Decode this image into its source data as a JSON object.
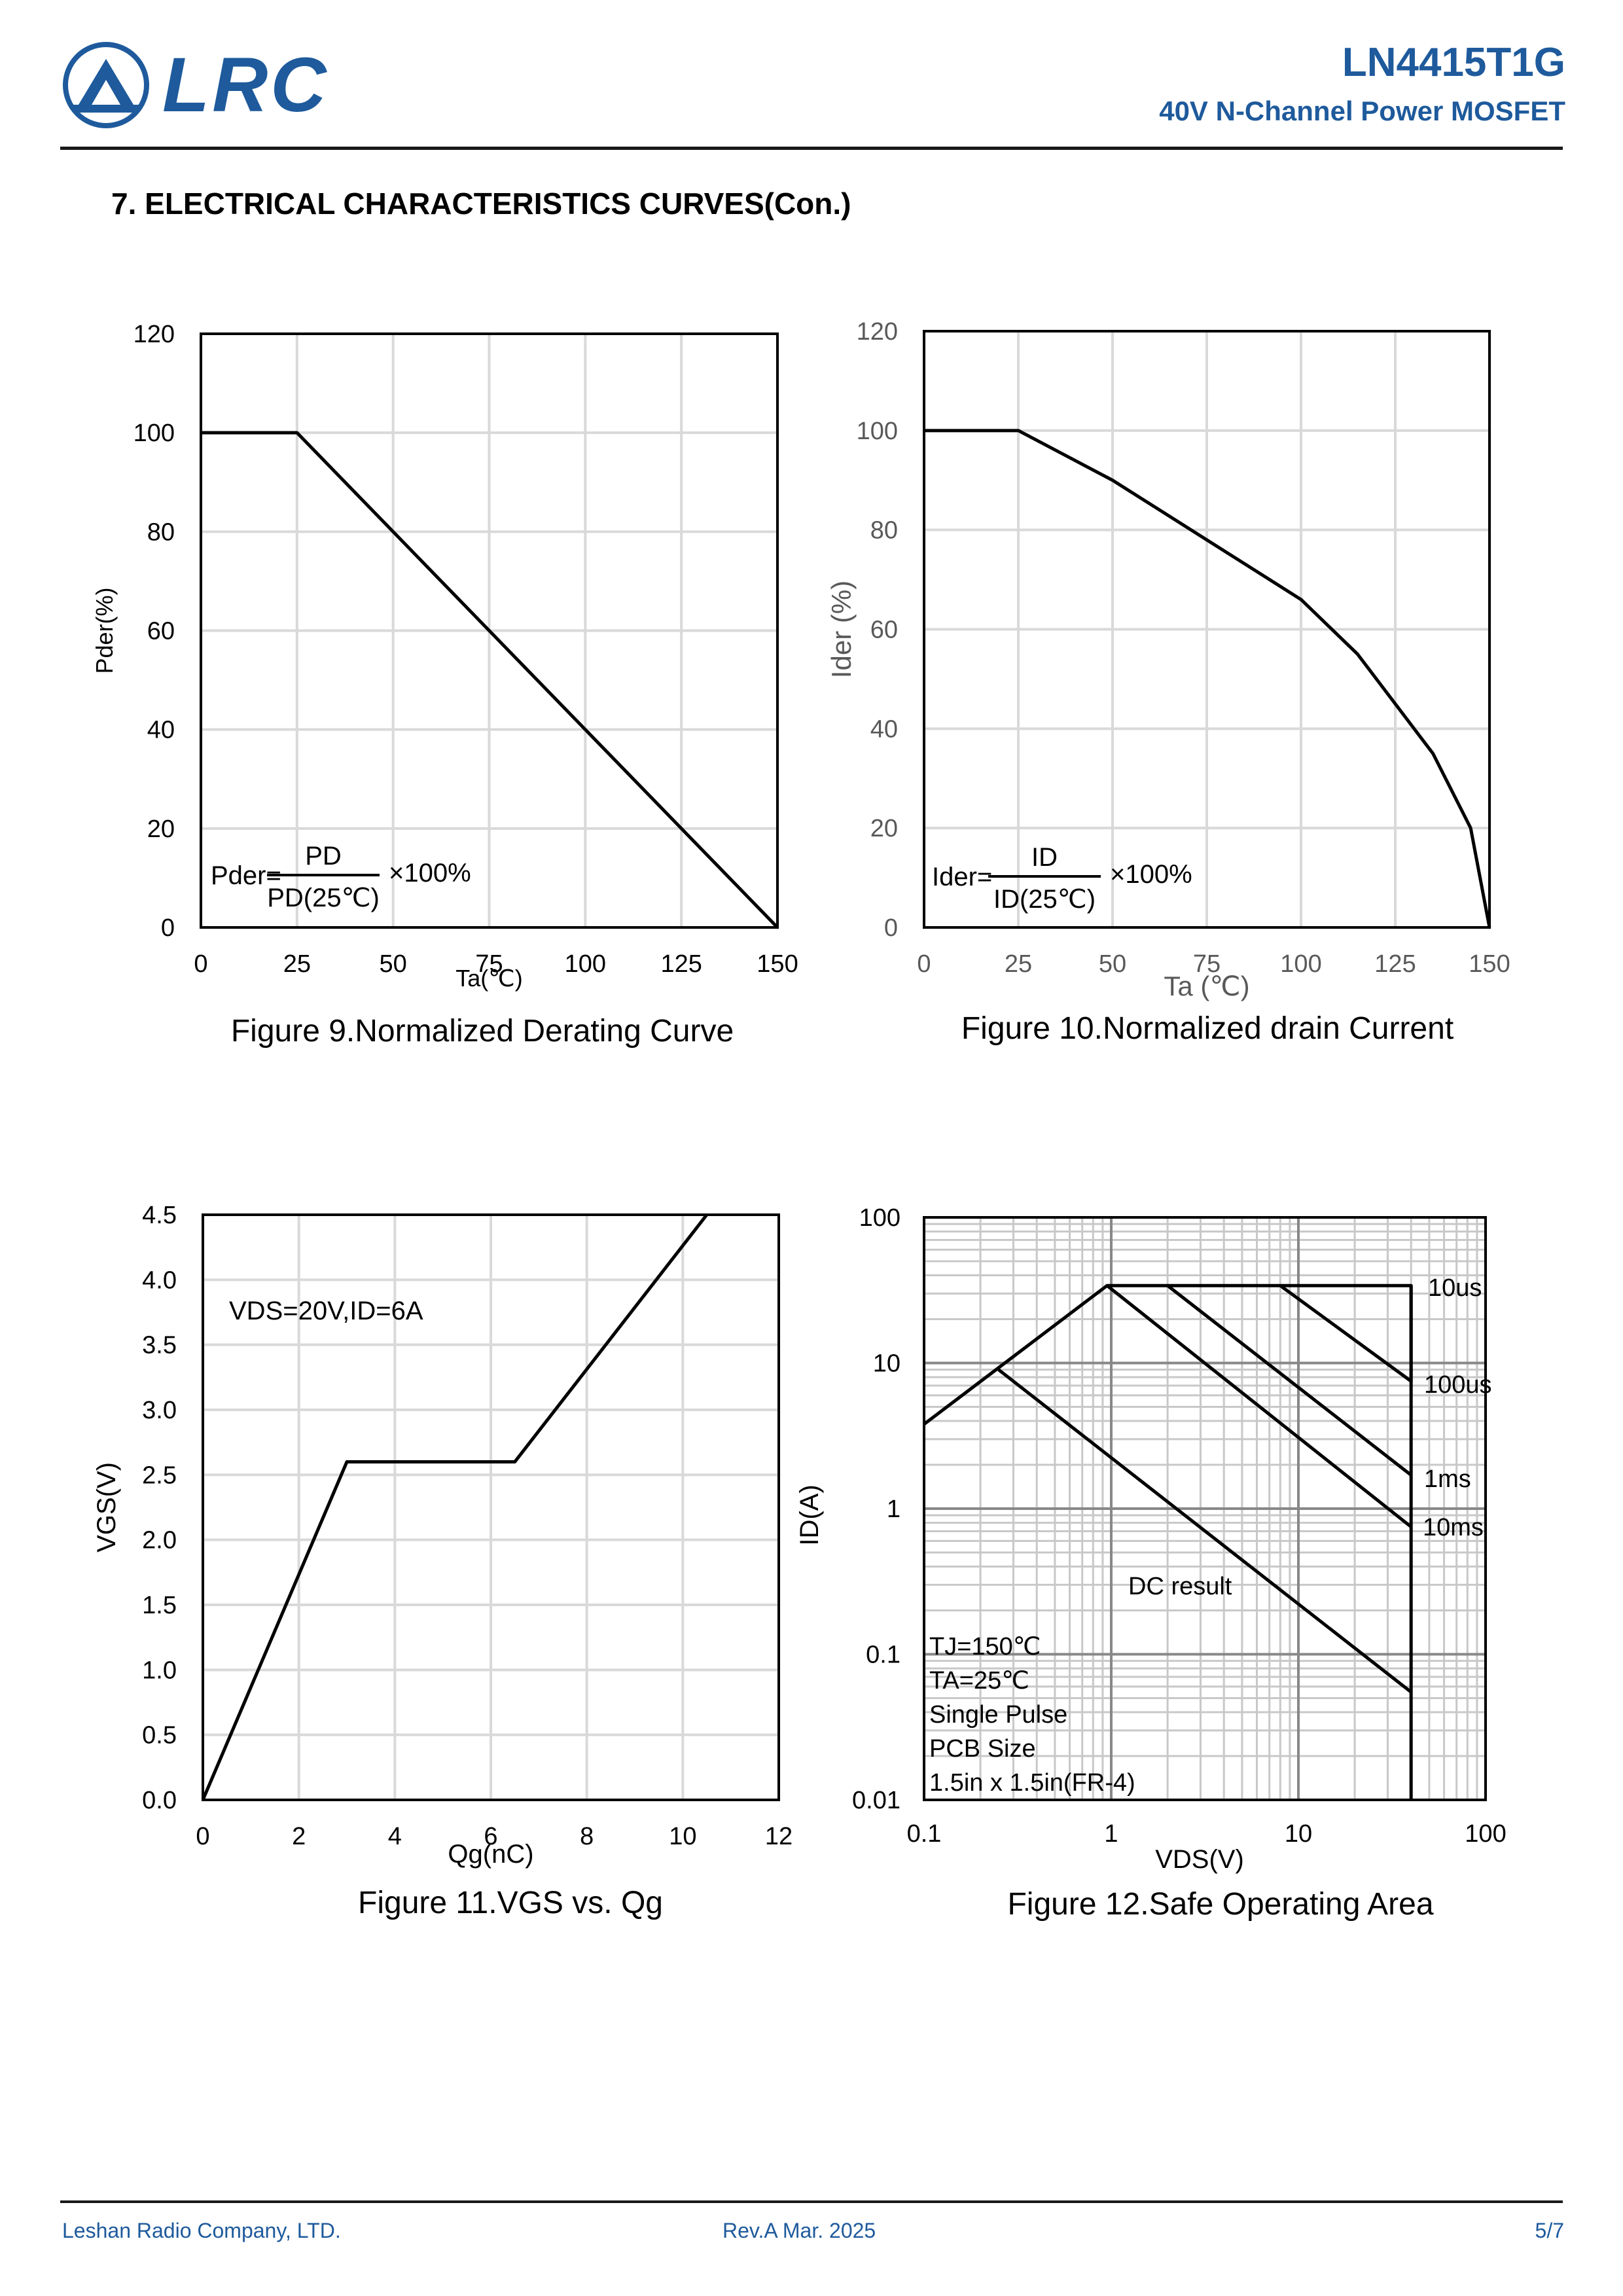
{
  "header": {
    "logo_text": "LRC",
    "part_number": "LN4415T1G",
    "subtitle": "40V N-Channel Power MOSFET"
  },
  "section_title": "7. ELECTRICAL CHARACTERISTICS CURVES(Con.)",
  "figures": {
    "fig9": {
      "caption": "Figure 9.Normalized Derating Curve",
      "formula_lhs": "Pder=",
      "formula_num": "PD",
      "formula_den": "PD(25℃)",
      "formula_mul": "×100%"
    },
    "fig10": {
      "caption": "Figure 10.Normalized drain Current",
      "formula_lhs": "Ider=",
      "formula_num": "ID",
      "formula_den": "ID(25℃)",
      "formula_mul": "×100%"
    },
    "fig11": {
      "caption": "Figure 11.VGS vs. Qg",
      "condition": "VDS=20V,ID=6A"
    },
    "fig12": {
      "caption": "Figure 12.Safe Operating Area",
      "conditions": [
        "TJ=150℃",
        "TA=25℃",
        "Single Pulse",
        "PCB Size",
        "1.5in x 1.5in(FR-4)"
      ]
    }
  },
  "footer": {
    "company": "Leshan Radio Company, LTD.",
    "revision": "Rev.A   Mar.  2025",
    "page": "5/7"
  },
  "chart_data": [
    {
      "type": "line",
      "xlabel": "Ta(℃)",
      "ylabel": "Pder(%)",
      "xlim": [
        0,
        150
      ],
      "ylim": [
        0,
        120
      ],
      "xticks": [
        "0",
        "25",
        "50",
        "75",
        "100",
        "125",
        "150"
      ],
      "yticks": [
        "0",
        "20",
        "40",
        "60",
        "80",
        "100",
        "120"
      ],
      "grid": true,
      "series": [
        {
          "x": [
            0,
            25,
            150
          ],
          "y": [
            100,
            100,
            0
          ]
        }
      ]
    },
    {
      "type": "line",
      "xlabel": "Ta (℃)",
      "ylabel": "Ider (%)",
      "xlim": [
        0,
        150
      ],
      "ylim": [
        0,
        120
      ],
      "xticks": [
        "0",
        "25",
        "50",
        "75",
        "100",
        "125",
        "150"
      ],
      "yticks": [
        "0",
        "20",
        "40",
        "60",
        "80",
        "100",
        "120"
      ],
      "grid": true,
      "series": [
        {
          "x": [
            0,
            25,
            50,
            75,
            100,
            115,
            125,
            135,
            145,
            150
          ],
          "y": [
            100,
            100,
            90,
            78,
            66,
            55,
            45,
            35,
            20,
            0
          ]
        }
      ]
    },
    {
      "type": "line",
      "xlabel": "Qg(nC)",
      "ylabel": "VGS(V)",
      "xlim": [
        0,
        12
      ],
      "ylim": [
        0,
        4.5
      ],
      "xticks": [
        "0",
        "2",
        "4",
        "6",
        "8",
        "10",
        "12"
      ],
      "yticks": [
        "0.0",
        "0.5",
        "1.0",
        "1.5",
        "2.0",
        "2.5",
        "3.0",
        "3.5",
        "4.0",
        "4.5"
      ],
      "grid": true,
      "series": [
        {
          "x": [
            0,
            3,
            6.5,
            10.5
          ],
          "y": [
            0,
            2.6,
            2.6,
            4.5
          ]
        }
      ]
    },
    {
      "type": "line",
      "xlabel": "VDS(V)",
      "ylabel": "ID(A)",
      "xscale": "log",
      "yscale": "log",
      "xlim": [
        0.1,
        100
      ],
      "ylim": [
        0.01,
        100
      ],
      "xticks": [
        "0.1",
        "1",
        "10",
        "100"
      ],
      "yticks": [
        "0.01",
        "0.1",
        "1",
        "10",
        "100"
      ],
      "grid": true,
      "series": [
        {
          "name": "10us",
          "x": [
            0.1,
            0.95,
            40,
            40
          ],
          "y": [
            3.8,
            34,
            34,
            7.5
          ]
        },
        {
          "name": "100us",
          "x": [
            8,
            40
          ],
          "y": [
            34,
            7.5
          ]
        },
        {
          "name": "1ms",
          "x": [
            2,
            40
          ],
          "y": [
            34,
            1.7
          ]
        },
        {
          "name": "10ms",
          "x": [
            0.95,
            40
          ],
          "y": [
            34,
            0.75
          ]
        },
        {
          "name": "DC result",
          "x": [
            0.25,
            40
          ],
          "y": [
            9,
            0.055
          ]
        },
        {
          "name": "",
          "x": [
            40,
            40
          ],
          "y": [
            34,
            0.01
          ]
        }
      ]
    }
  ]
}
